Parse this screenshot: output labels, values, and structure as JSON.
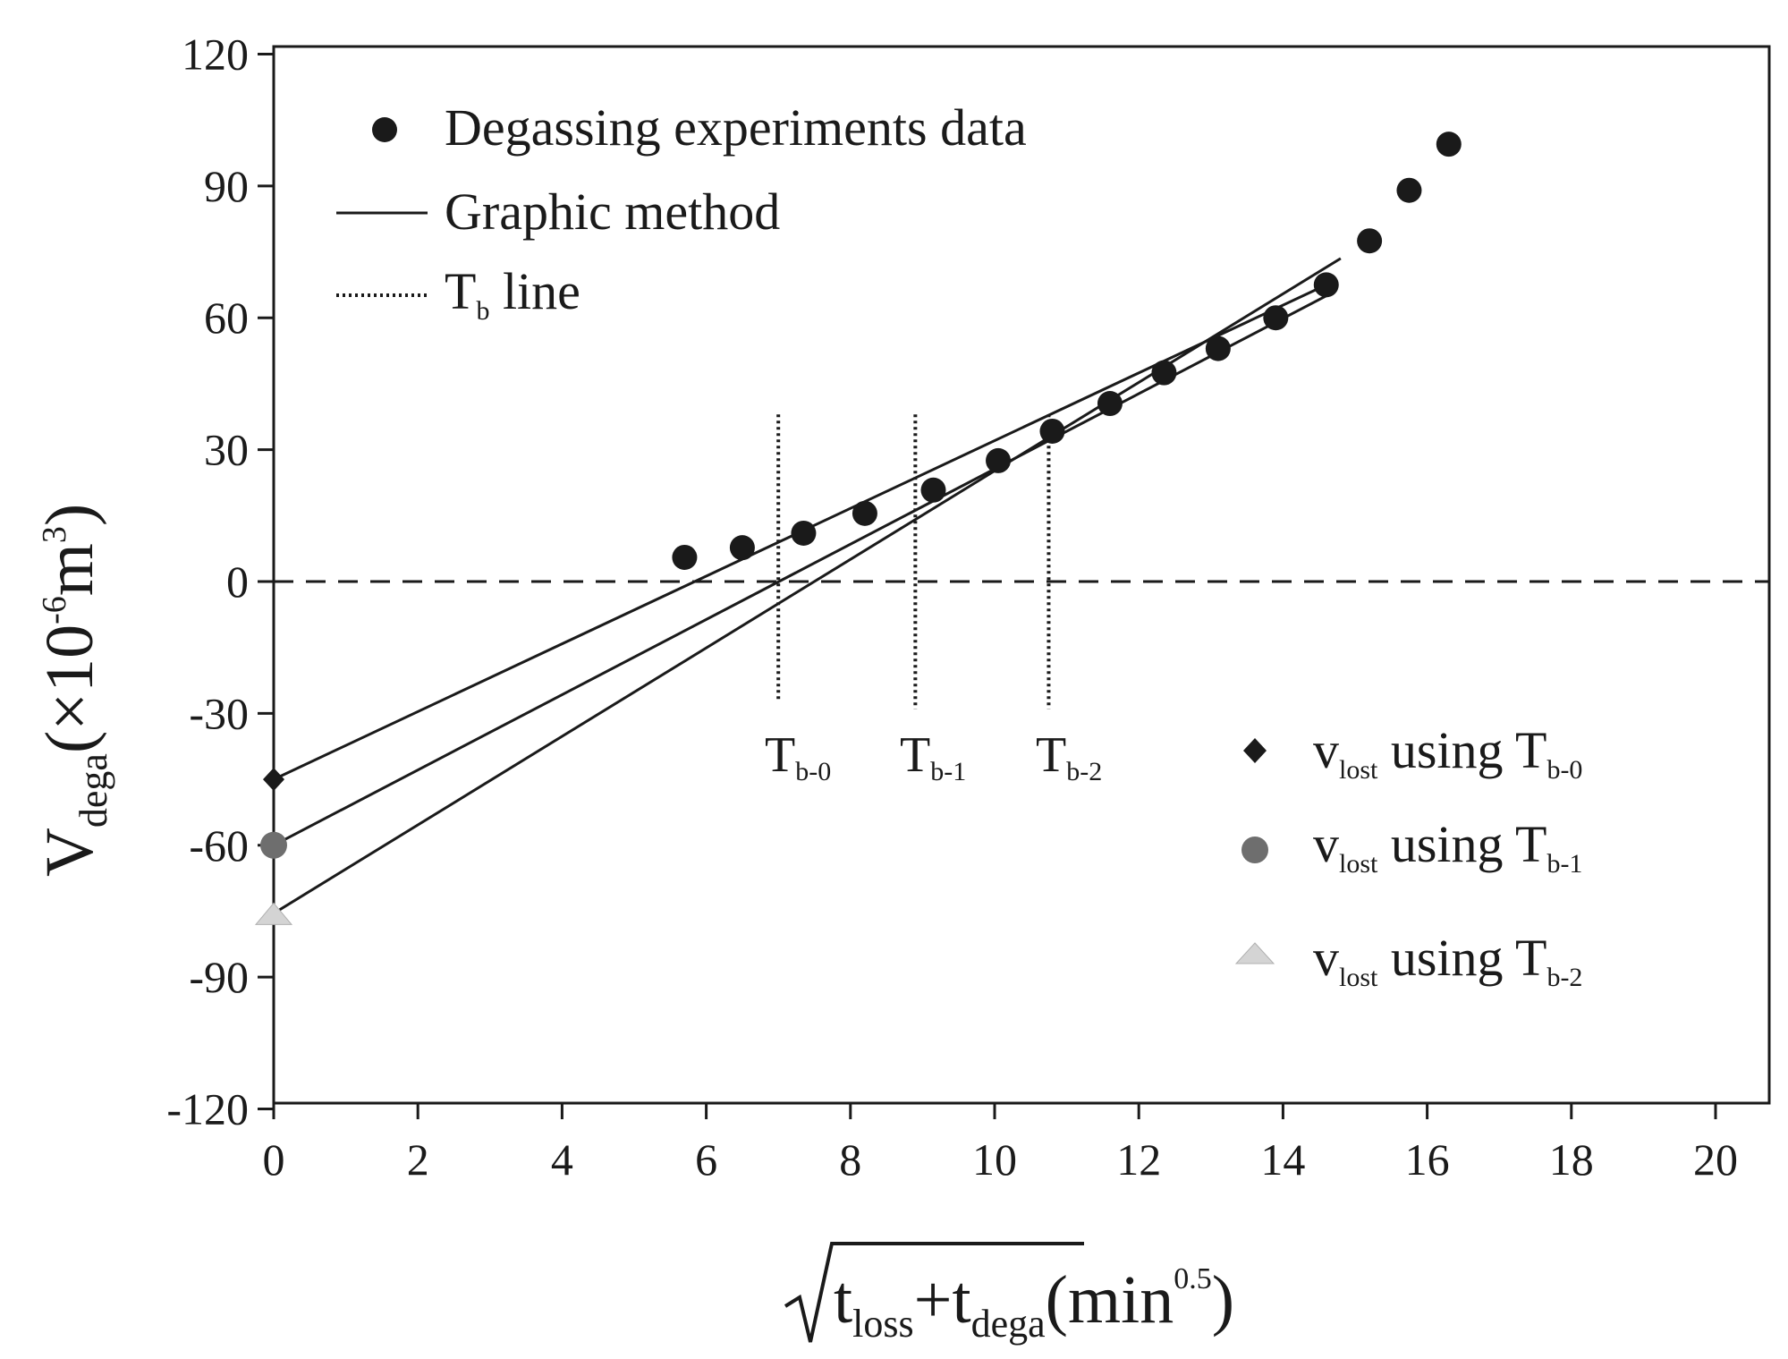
{
  "chart_data": {
    "type": "scatter",
    "x_axis": {
      "ticks": [
        "0",
        "2",
        "4",
        "6",
        "8",
        "10",
        "12",
        "14",
        "16",
        "18",
        "20"
      ],
      "range": [
        0,
        20.5
      ]
    },
    "y_axis": {
      "ticks": [
        "120",
        "90",
        "60",
        "30",
        "0",
        "-30",
        "-60",
        "-90",
        "-120"
      ],
      "range": [
        -120,
        120
      ]
    },
    "ylabel": {
      "main": "V",
      "sub": "dega",
      "paren_open": "(×10",
      "sup": "-6",
      "unit": "m",
      "unit_sup": "3",
      "paren_close": ")"
    },
    "xlabel": {
      "t1": "t",
      "sub1": "loss",
      "plus": "+",
      "t2": "t",
      "sub2": "dega",
      "paren_open": "(min",
      "sup": "0.5",
      "paren_close": ")"
    },
    "legend": {
      "degassing": "Degassing experiments data",
      "graphic": "Graphic method",
      "tb": {
        "main": "T",
        "sub": "b",
        "rest": " line"
      }
    },
    "degassing_points": {
      "x": [
        5.7,
        6.5,
        7.35,
        8.2,
        9.15,
        10.05,
        10.8,
        11.6,
        12.35,
        13.1,
        13.9,
        14.6,
        15.2,
        15.75,
        16.3
      ],
      "y": [
        5.5,
        7.7,
        11,
        15.5,
        20.8,
        27.5,
        34.2,
        40.5,
        47.5,
        53,
        60,
        67.5,
        77.5,
        89,
        99.5
      ]
    },
    "fit_lines": [
      {
        "name": "T_b-0 fit",
        "x": [
          0,
          14.6
        ],
        "y": [
          -45,
          67.5
        ]
      },
      {
        "name": "T_b-1 fit",
        "x": [
          0,
          14.6
        ],
        "y": [
          -60,
          65
        ]
      },
      {
        "name": "T_b-2 fit",
        "x": [
          0,
          14.8
        ],
        "y": [
          -75.5,
          73.5
        ]
      }
    ],
    "zero_line": {
      "y": 0
    },
    "tb_lines": [
      {
        "x": 7.0,
        "y_range": [
          -27,
          38
        ],
        "label": "T",
        "sub": "b-0"
      },
      {
        "x": 8.9,
        "y_range": [
          -29,
          38
        ],
        "label": "T",
        "sub": "b-1"
      },
      {
        "x": 10.75,
        "y_range": [
          -29,
          38
        ],
        "label": "T",
        "sub": "b-2"
      }
    ],
    "lost_points": [
      {
        "marker": "diamond",
        "x": 0,
        "y": -45,
        "label_main": "v",
        "label_sub": "lost",
        "label_text": " using T",
        "label_tsub": "b-0",
        "color": "#1a1a1a"
      },
      {
        "marker": "circle",
        "x": 0,
        "y": -60,
        "label_main": "v",
        "label_sub": "lost",
        "label_text": " using T",
        "label_tsub": "b-1",
        "color": "#6e6e6e"
      },
      {
        "marker": "triangle",
        "x": 0,
        "y": -76,
        "label_main": "v",
        "label_sub": "lost",
        "label_text": " using T",
        "label_tsub": "b-2",
        "color": "#d4d4d4"
      }
    ],
    "colors": {
      "ink": "#1a1a1a",
      "grey": "#6e6e6e",
      "light": "#d4d4d4"
    }
  }
}
